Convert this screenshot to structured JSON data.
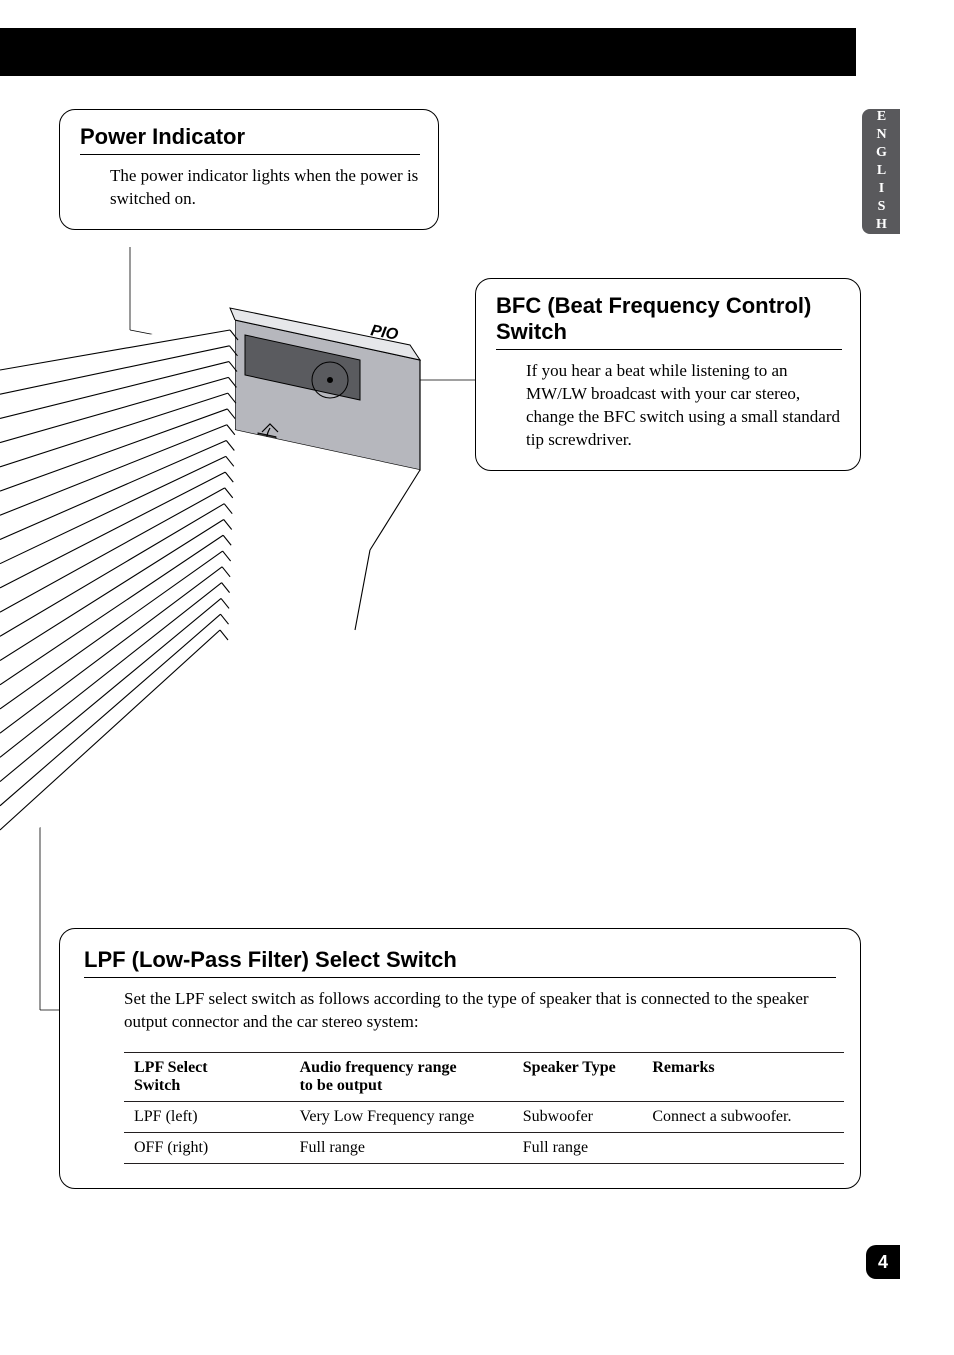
{
  "page_number": "4",
  "language_tab": "ENGLISH",
  "colors": {
    "black": "#000000",
    "gray_tab": "#59595c",
    "rule": "#231f20",
    "device_top": "#b6b7bd",
    "device_dark": "#5a5b5f",
    "white": "#ffffff"
  },
  "callouts": {
    "power": {
      "title": "Power Indicator",
      "body": "The power indicator lights when the power is switched on."
    },
    "bfc": {
      "title": "BFC (Beat Frequency Control) Switch",
      "body": "If you hear a beat while listening to an MW/LW broadcast with your car stereo, change the BFC switch using a small standard tip screwdriver."
    },
    "lpf": {
      "title": "LPF (Low-Pass Filter) Select Switch",
      "body": "Set the LPF select switch as follows according to the type of speaker that is connected to the speaker output connector and the car stereo system:"
    }
  },
  "lpf_table": {
    "headers": [
      "LPF Select Switch",
      "Audio frequency range to be output",
      "Speaker Type",
      "Remarks"
    ],
    "rows": [
      [
        "LPF (left)",
        "Very Low Frequency range",
        "Subwoofer",
        "Connect a subwoofer."
      ],
      [
        "OFF (right)",
        "Full range",
        "Full range",
        ""
      ]
    ],
    "col_widths": [
      "23%",
      "31%",
      "18%",
      "28%"
    ]
  },
  "diagram": {
    "brand_hint": "PIO",
    "fin_count": 20,
    "callout_circle_r": 18
  }
}
